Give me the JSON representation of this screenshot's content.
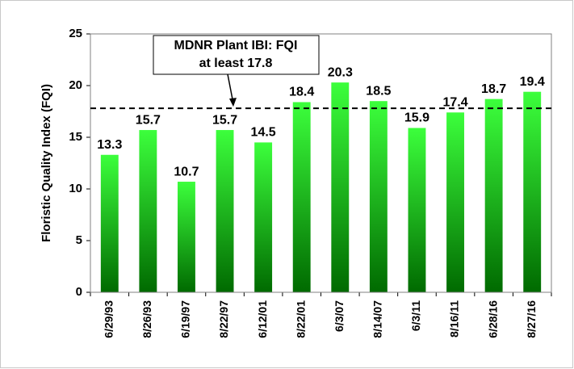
{
  "chart_data": {
    "type": "bar",
    "y_label": "Floristic Quality Index (FQI)",
    "categories": [
      "6/29/93",
      "8/26/93",
      "6/19/97",
      "8/22/97",
      "6/12/01",
      "8/22/01",
      "6/3/07",
      "8/14/07",
      "6/3/11",
      "8/16/11",
      "6/28/16",
      "8/27/16"
    ],
    "values": [
      13.3,
      15.7,
      10.7,
      15.7,
      14.5,
      18.4,
      20.3,
      18.5,
      15.9,
      17.4,
      18.7,
      19.4
    ],
    "gradient": [
      "#3cff3c",
      "#006a00"
    ],
    "ylim": [
      0,
      25
    ],
    "yticks": [
      0,
      5,
      10,
      15,
      20,
      25
    ],
    "grid": false,
    "reference_line": 17.8,
    "annotation": [
      "MDNR Plant IBI:  FQI",
      "at least 17.8"
    ]
  }
}
